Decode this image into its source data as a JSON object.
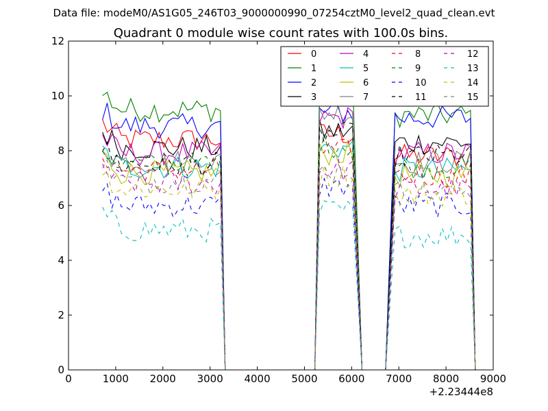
{
  "figure": {
    "suptitle": "Data file: modeM0/AS1G05_246T03_9000000990_07254cztM0_level2_quad_clean.evt"
  },
  "chart_data": {
    "type": "line",
    "title": "Quadrant 0 module wise count rates with 100.0s bins.",
    "xlabel": "",
    "ylabel": "",
    "x_offset_label": "+2.23444e8",
    "xlim": [
      0,
      9000
    ],
    "ylim": [
      0,
      12
    ],
    "xticks": [
      0,
      1000,
      2000,
      3000,
      4000,
      5000,
      6000,
      7000,
      8000,
      9000
    ],
    "yticks": [
      0,
      2,
      4,
      6,
      8,
      10,
      12
    ],
    "grid": false,
    "legend_position": "top-right",
    "legend_columns": 4,
    "segments": [
      {
        "start": 720,
        "end": 3220,
        "drop_to": 3320
      },
      {
        "start": 5320,
        "end": 6020,
        "rise_from": 5220,
        "drop_to": 6220
      },
      {
        "start": 6920,
        "end": 8520,
        "rise_from": 6720,
        "drop_to": 8620
      }
    ],
    "series": [
      {
        "name": "0",
        "color": "#ff0000",
        "dash": "solid",
        "levels": [
          8.4,
          8.6,
          7.8
        ]
      },
      {
        "name": "1",
        "color": "#008000",
        "dash": "solid",
        "levels": [
          9.5,
          10.3,
          9.3
        ]
      },
      {
        "name": "2",
        "color": "#0000ff",
        "dash": "solid",
        "levels": [
          8.9,
          9.4,
          9.2
        ]
      },
      {
        "name": "3",
        "color": "#000000",
        "dash": "solid",
        "levels": [
          8.1,
          8.7,
          8.3
        ]
      },
      {
        "name": "4",
        "color": "#bf00bf",
        "dash": "solid",
        "levels": [
          7.9,
          9.2,
          7.9
        ]
      },
      {
        "name": "5",
        "color": "#00bfbf",
        "dash": "solid",
        "levels": [
          7.4,
          8.1,
          7.3
        ]
      },
      {
        "name": "6",
        "color": "#bfbf00",
        "dash": "solid",
        "levels": [
          7.2,
          7.9,
          7.1
        ]
      },
      {
        "name": "7",
        "color": "#808080",
        "dash": "solid",
        "levels": [
          7.6,
          9.4,
          7.6
        ]
      },
      {
        "name": "8",
        "color": "#ff0000",
        "dash": "dashed",
        "levels": [
          7.3,
          8.0,
          7.1
        ]
      },
      {
        "name": "9",
        "color": "#008000",
        "dash": "dashed",
        "levels": [
          7.5,
          8.2,
          7.4
        ]
      },
      {
        "name": "10",
        "color": "#0000ff",
        "dash": "dashed",
        "levels": [
          6.0,
          6.7,
          6.0
        ]
      },
      {
        "name": "11",
        "color": "#000000",
        "dash": "dashed",
        "levels": [
          7.5,
          8.6,
          7.8
        ]
      },
      {
        "name": "12",
        "color": "#bf00bf",
        "dash": "dashed",
        "levels": [
          6.8,
          7.3,
          6.6
        ]
      },
      {
        "name": "13",
        "color": "#00bfbf",
        "dash": "dashed",
        "levels": [
          5.1,
          5.8,
          4.9
        ]
      },
      {
        "name": "14",
        "color": "#bfbf00",
        "dash": "dashed",
        "levels": [
          6.6,
          7.1,
          6.4
        ]
      },
      {
        "name": "15",
        "color": "#808080",
        "dash": "dashed",
        "levels": [
          6.9,
          7.3,
          6.5
        ]
      }
    ]
  }
}
